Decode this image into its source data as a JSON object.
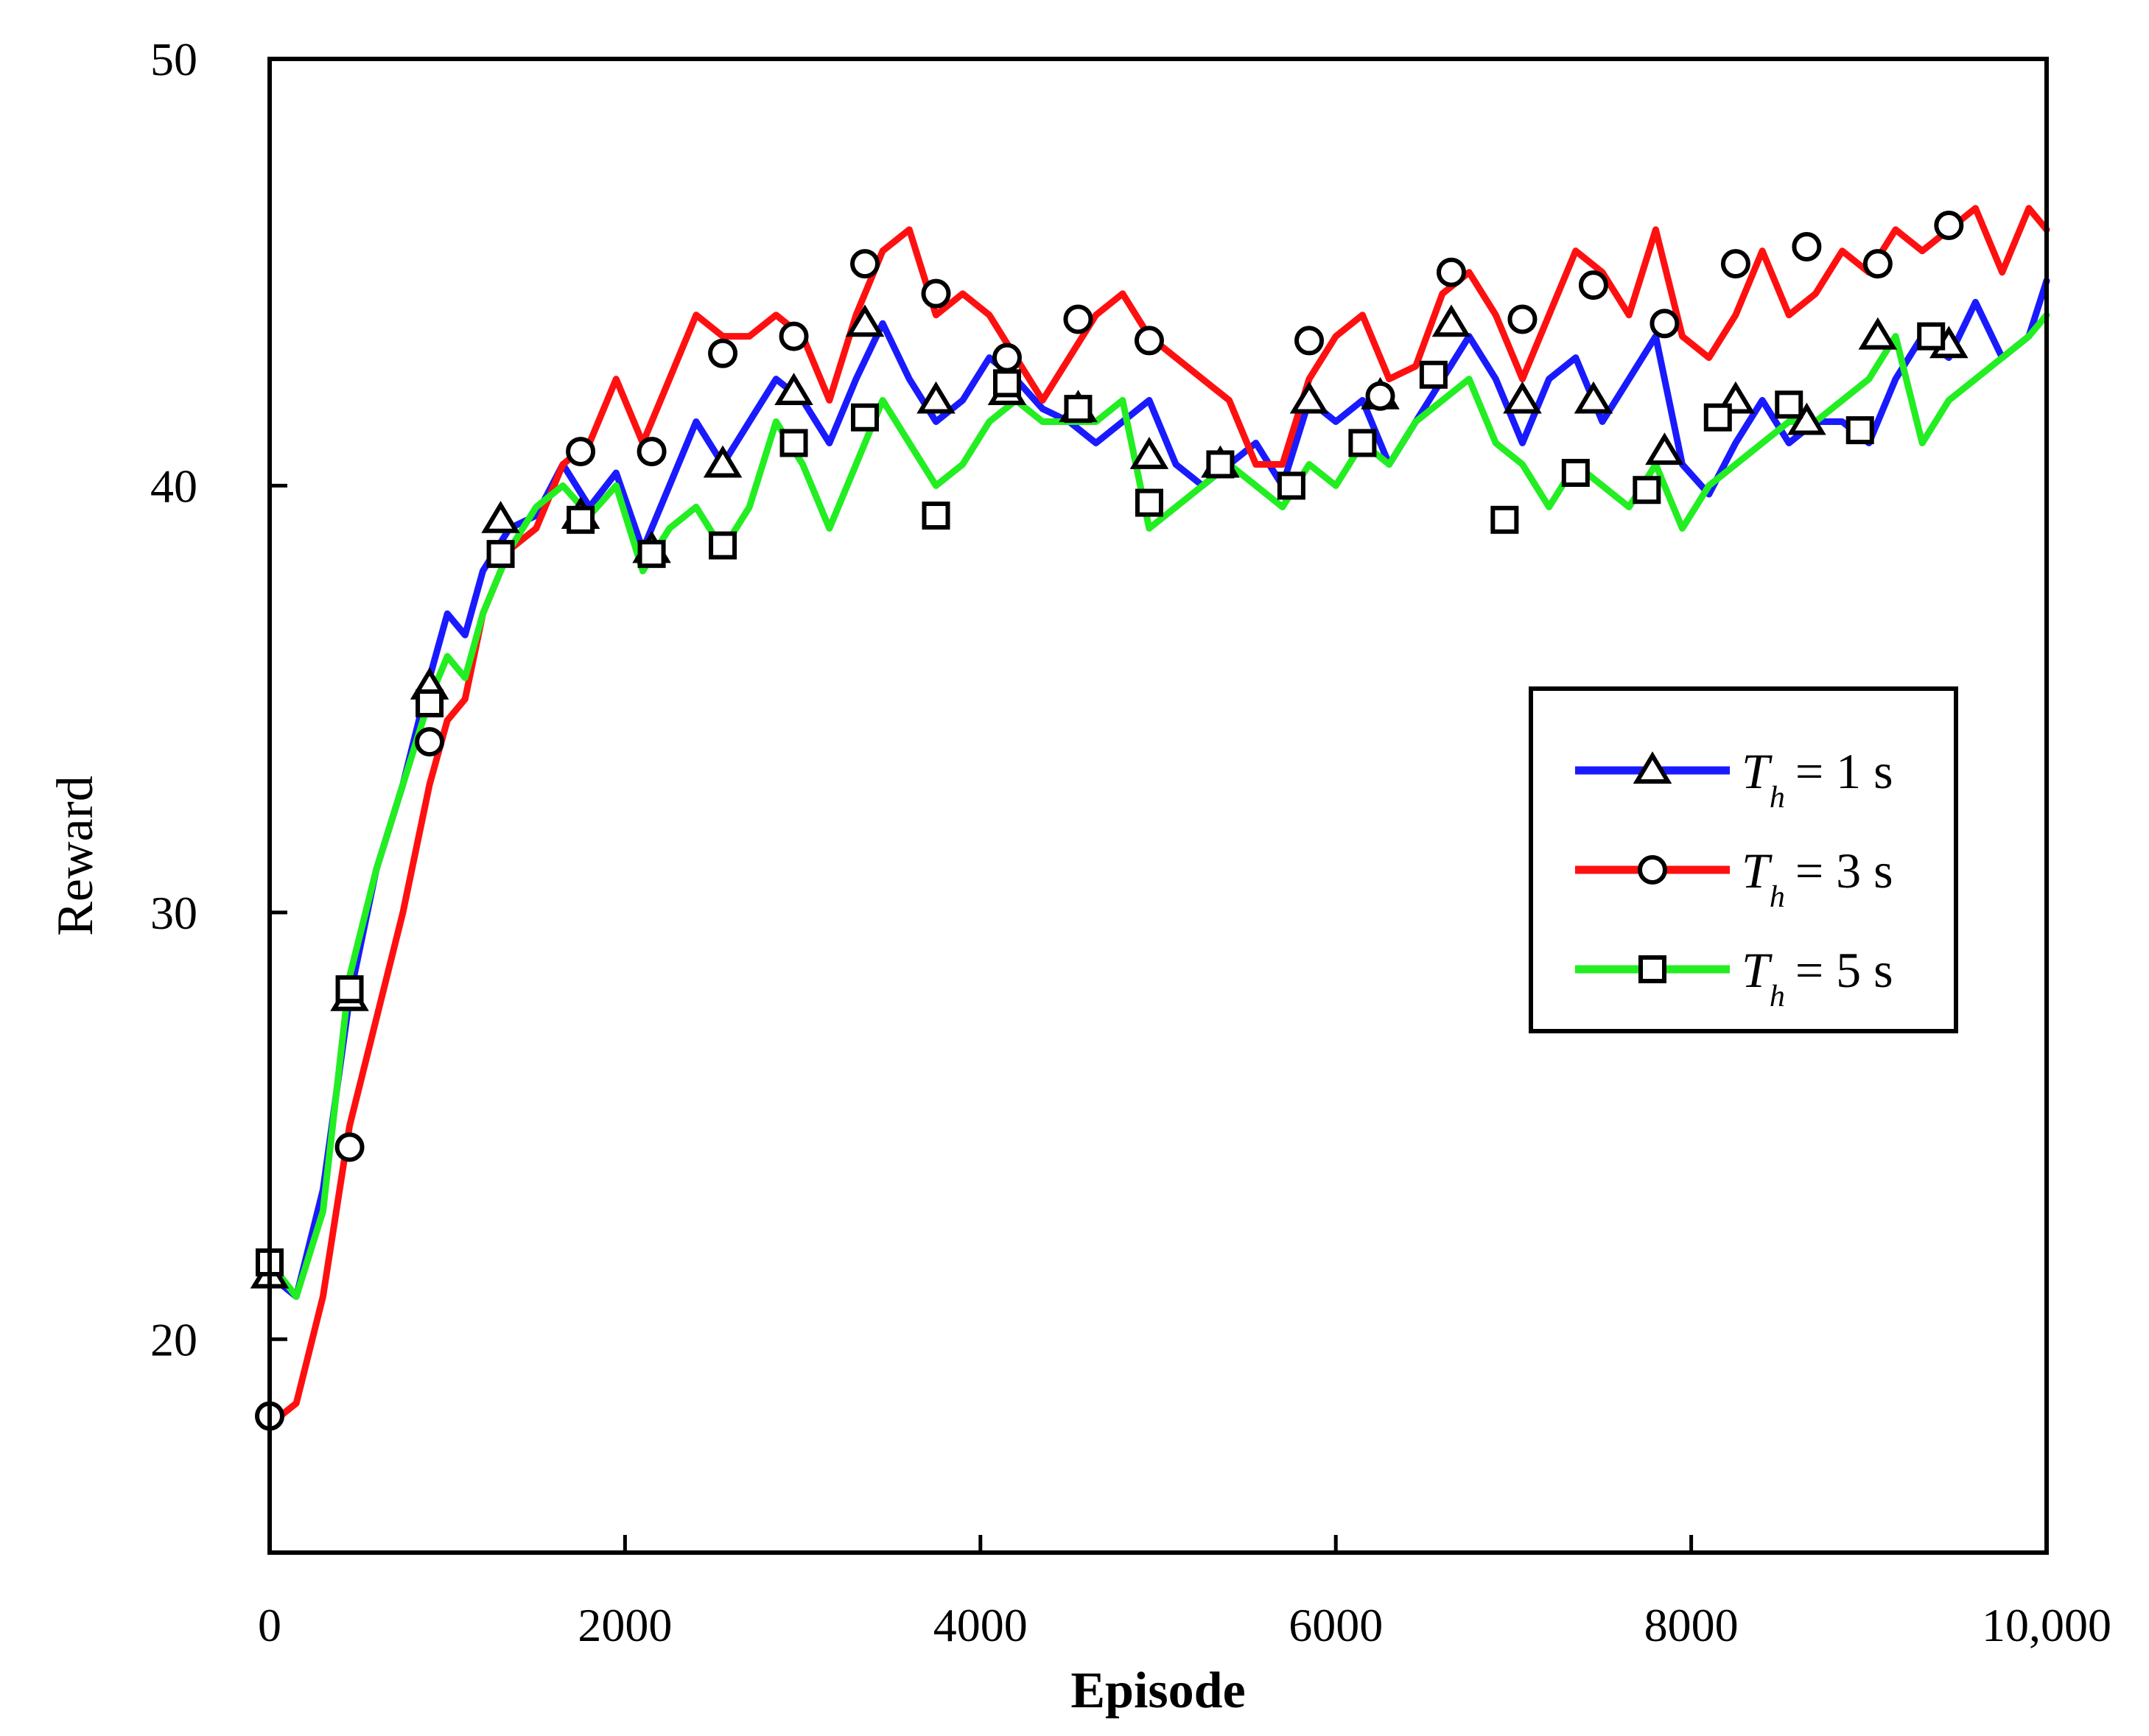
{
  "chart_data": {
    "type": "line",
    "title": "",
    "xlabel": "Episode",
    "ylabel": "Reward",
    "xlim": [
      0,
      10000
    ],
    "ylim": [
      15,
      50
    ],
    "x_ticks": [
      0,
      2000,
      4000,
      6000,
      8000,
      10000
    ],
    "x_tick_labels": [
      "0",
      "2000",
      "4000",
      "6000",
      "8000",
      "10,000"
    ],
    "y_ticks": [
      20,
      30,
      40,
      50
    ],
    "y_tick_labels": [
      "20",
      "30",
      "40",
      "50"
    ],
    "grid": false,
    "legend_position": "middle-right",
    "series": [
      {
        "name": "T_h = 1 s",
        "legend_symbol": "T",
        "legend_subscript": "h",
        "legend_suffix": "= 1 s",
        "color": "#1a1aff",
        "marker": "triangle",
        "x": [
          0,
          150,
          300,
          450,
          600,
          750,
          900,
          1000,
          1100,
          1200,
          1350,
          1500,
          1650,
          1800,
          1950,
          2100,
          2250,
          2400,
          2550,
          2700,
          2850,
          3000,
          3150,
          3300,
          3450,
          3600,
          3750,
          3900,
          4050,
          4200,
          4350,
          4500,
          4650,
          4800,
          4950,
          5100,
          5250,
          5400,
          5550,
          5700,
          5850,
          6000,
          6150,
          6300,
          6450,
          6600,
          6750,
          6900,
          7050,
          7200,
          7350,
          7500,
          7650,
          7800,
          7950,
          8100,
          8250,
          8400,
          8550,
          8700,
          8850,
          9000,
          9150,
          9300,
          9450,
          9600,
          9750,
          9900,
          10000
        ],
        "y": [
          21.5,
          21.0,
          23.5,
          28.0,
          31.0,
          33.0,
          35.5,
          37.0,
          36.5,
          38.0,
          39.0,
          39.3,
          40.5,
          39.5,
          40.3,
          38.5,
          40.0,
          41.5,
          40.5,
          41.5,
          42.5,
          42.0,
          41.0,
          42.5,
          43.8,
          42.5,
          41.5,
          42.0,
          43.0,
          42.5,
          41.8,
          41.5,
          41.0,
          41.5,
          42.0,
          40.5,
          40.0,
          40.5,
          41.0,
          40.0,
          42.0,
          41.5,
          42.0,
          40.5,
          41.5,
          42.5,
          43.5,
          42.5,
          41.0,
          42.5,
          43.0,
          41.5,
          42.5,
          43.5,
          40.5,
          39.8,
          41.0,
          42.0,
          41.0,
          41.5,
          41.5,
          41.0,
          42.5,
          43.5,
          43.0,
          44.3,
          43.0,
          43.5,
          44.8
        ],
        "marker_x": [
          0,
          450,
          900,
          1300,
          1750,
          2150,
          2550,
          2950,
          3350,
          3750,
          4150,
          4550,
          4950,
          5350,
          5850,
          6250,
          6650,
          7050,
          7450,
          7850,
          8250,
          8650,
          9050,
          9450
        ],
        "marker_y": [
          21.5,
          28.0,
          35.3,
          39.2,
          39.3,
          38.5,
          40.5,
          42.2,
          43.8,
          42.0,
          42.2,
          41.8,
          40.7,
          40.5,
          42.0,
          42.1,
          43.8,
          42.0,
          42.0,
          40.8,
          42.0,
          41.5,
          43.5,
          43.3
        ]
      },
      {
        "name": "T_h = 3 s",
        "legend_symbol": "T",
        "legend_subscript": "h",
        "legend_suffix": "= 3 s",
        "color": "#ff1010",
        "marker": "circle",
        "x": [
          0,
          150,
          300,
          450,
          600,
          750,
          900,
          1000,
          1100,
          1200,
          1350,
          1500,
          1650,
          1800,
          1950,
          2100,
          2250,
          2400,
          2550,
          2700,
          2850,
          3000,
          3150,
          3300,
          3450,
          3600,
          3750,
          3900,
          4050,
          4200,
          4350,
          4500,
          4650,
          4800,
          4950,
          5100,
          5250,
          5400,
          5550,
          5700,
          5850,
          6000,
          6150,
          6300,
          6450,
          6600,
          6750,
          6900,
          7050,
          7200,
          7350,
          7500,
          7650,
          7800,
          7950,
          8100,
          8250,
          8400,
          8550,
          8700,
          8850,
          9000,
          9150,
          9300,
          9450,
          9600,
          9750,
          9900,
          10000
        ],
        "y": [
          18.0,
          18.5,
          21.0,
          25.0,
          27.5,
          30.0,
          33.0,
          34.5,
          35.0,
          37.0,
          38.5,
          39.0,
          40.5,
          41.0,
          42.5,
          41.0,
          42.5,
          44.0,
          43.5,
          43.5,
          44.0,
          43.5,
          42.0,
          44.0,
          45.5,
          46.0,
          44.0,
          44.5,
          44.0,
          43.0,
          42.0,
          43.0,
          44.0,
          44.5,
          43.5,
          43.0,
          42.5,
          42.0,
          40.5,
          40.5,
          42.5,
          43.5,
          44.0,
          42.5,
          42.8,
          44.5,
          45.0,
          44.0,
          42.5,
          44.0,
          45.5,
          45.0,
          44.0,
          46.0,
          43.5,
          43.0,
          44.0,
          45.5,
          44.0,
          44.5,
          45.5,
          45.0,
          46.0,
          45.5,
          46.0,
          46.5,
          45.0,
          46.5,
          46.0
        ],
        "marker_x": [
          0,
          450,
          900,
          1750,
          2150,
          2550,
          2950,
          3350,
          3750,
          4150,
          4550,
          4950,
          5850,
          6250,
          6650,
          7050,
          7450,
          7850,
          8250,
          8650,
          9050,
          9450
        ],
        "marker_y": [
          18.2,
          24.5,
          34.0,
          40.8,
          40.8,
          43.1,
          43.5,
          45.2,
          44.5,
          43.0,
          43.9,
          43.4,
          43.4,
          42.1,
          45.0,
          43.9,
          44.7,
          43.8,
          45.2,
          45.6,
          45.2,
          46.1
        ]
      },
      {
        "name": "T_h = 5 s",
        "legend_symbol": "T",
        "legend_subscript": "h",
        "legend_suffix": "= 5 s",
        "color": "#22ee22",
        "marker": "square",
        "x": [
          0,
          150,
          300,
          450,
          600,
          750,
          900,
          1000,
          1100,
          1200,
          1350,
          1500,
          1650,
          1800,
          1950,
          2100,
          2250,
          2400,
          2550,
          2700,
          2850,
          3000,
          3150,
          3300,
          3450,
          3600,
          3750,
          3900,
          4050,
          4200,
          4350,
          4500,
          4650,
          4800,
          4950,
          5100,
          5250,
          5400,
          5550,
          5700,
          5850,
          6000,
          6150,
          6300,
          6450,
          6600,
          6750,
          6900,
          7050,
          7200,
          7350,
          7500,
          7650,
          7800,
          7950,
          8100,
          8250,
          8400,
          8550,
          8700,
          8850,
          9000,
          9150,
          9300,
          9450,
          9600,
          9750,
          9900,
          10000
        ],
        "y": [
          21.8,
          21.0,
          23.0,
          28.5,
          31.0,
          33.0,
          35.0,
          36.0,
          35.5,
          37.0,
          38.5,
          39.5,
          40.0,
          39.3,
          40.0,
          38.0,
          39.0,
          39.5,
          38.5,
          39.5,
          41.5,
          40.5,
          39.0,
          40.5,
          42.0,
          41.0,
          40.0,
          40.5,
          41.5,
          42.0,
          41.5,
          41.5,
          41.5,
          42.0,
          39.0,
          39.5,
          40.0,
          40.5,
          40.0,
          39.5,
          40.5,
          40.0,
          41.0,
          40.5,
          41.5,
          42.0,
          42.5,
          41.0,
          40.5,
          39.5,
          40.5,
          40.0,
          39.5,
          40.5,
          39.0,
          40.0,
          40.5,
          41.0,
          41.5,
          41.5,
          42.0,
          42.5,
          43.5,
          41.0,
          42.0,
          42.5,
          43.0,
          43.5,
          44.0
        ],
        "marker_x": [
          0,
          450,
          900,
          1300,
          1750,
          2150,
          2550,
          2950,
          3350,
          3750,
          4150,
          4550,
          4950,
          5350,
          5750,
          6150,
          6550,
          6950,
          7350,
          7750,
          8150,
          8550,
          8950,
          9350
        ],
        "marker_y": [
          21.8,
          28.2,
          34.9,
          38.4,
          39.2,
          38.4,
          38.6,
          41.0,
          41.6,
          39.3,
          42.4,
          41.8,
          39.6,
          40.5,
          40.0,
          41.0,
          42.6,
          39.2,
          40.3,
          39.9,
          41.6,
          41.9,
          41.3,
          43.5
        ]
      }
    ]
  }
}
